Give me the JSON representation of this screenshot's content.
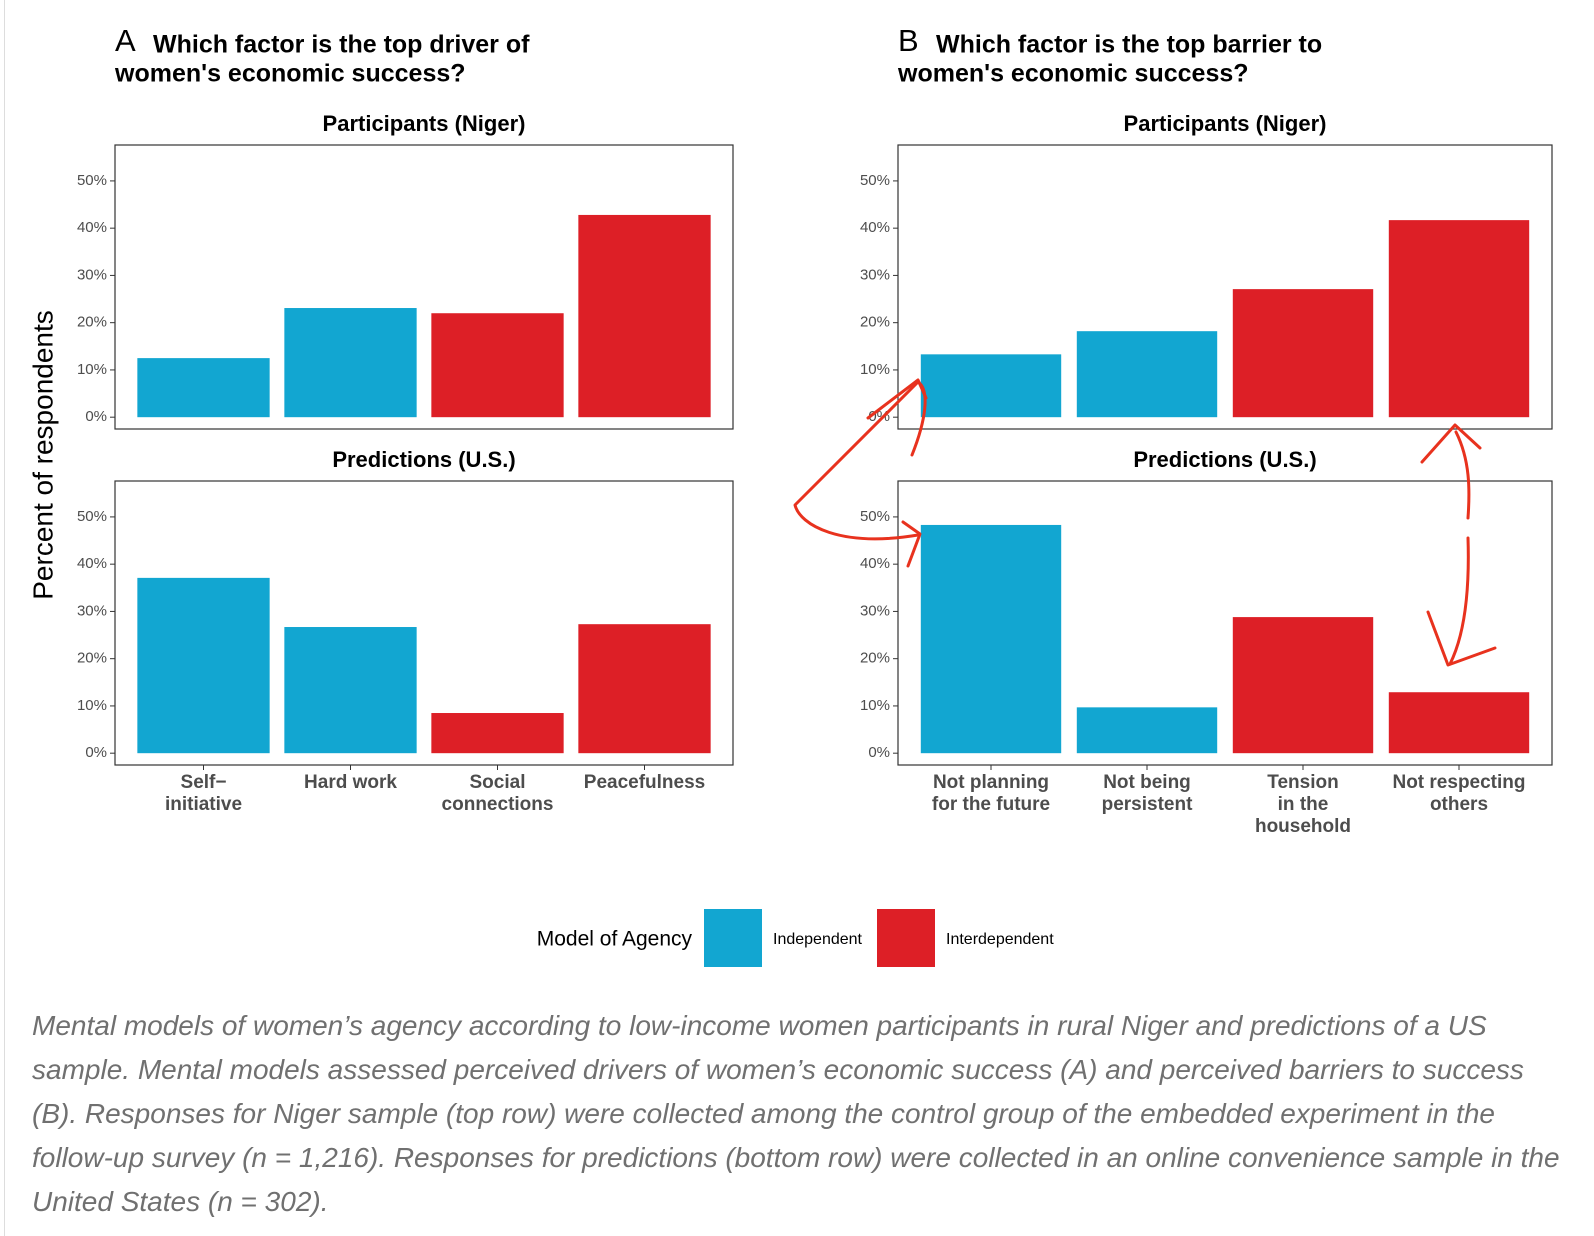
{
  "chart_data": [
    {
      "type": "bar",
      "label": "A",
      "title": [
        "Which factor is the top driver of",
        "women's economic success?"
      ],
      "categories": [
        [
          "Self−",
          "initiative"
        ],
        [
          "Hard work"
        ],
        [
          "Social",
          "connections"
        ],
        [
          "Peacefulness"
        ]
      ],
      "colors": [
        "#12a6d1",
        "#12a6d1",
        "#dd1f26",
        "#dd1f26"
      ],
      "ylim": [
        -2.5,
        57.6
      ],
      "yticks": [
        {
          "value": 0,
          "label": "0%"
        },
        {
          "value": 10,
          "label": "10%"
        },
        {
          "value": 20,
          "label": "20%"
        },
        {
          "value": 30,
          "label": "30%"
        },
        {
          "value": 40,
          "label": "40%"
        },
        {
          "value": 50,
          "label": "50%"
        }
      ],
      "facets": [
        {
          "title": "Participants (Niger)",
          "values": [
            12.5,
            23.1,
            22.0,
            42.8
          ]
        },
        {
          "title": "Predictions (U.S.)",
          "values": [
            37.1,
            26.7,
            8.5,
            27.3
          ]
        }
      ]
    },
    {
      "type": "bar",
      "label": "B",
      "title": [
        "Which factor is the top barrier to",
        "women's economic success?"
      ],
      "categories": [
        [
          "Not planning",
          "for the future"
        ],
        [
          "Not being",
          "persistent"
        ],
        [
          "Tension",
          "in the",
          "household"
        ],
        [
          "Not respecting",
          "others"
        ]
      ],
      "colors": [
        "#12a6d1",
        "#12a6d1",
        "#dd1f26",
        "#dd1f26"
      ],
      "ylim": [
        -2.5,
        57.6
      ],
      "yticks": [
        {
          "value": 0,
          "label": "0%"
        },
        {
          "value": 10,
          "label": "10%"
        },
        {
          "value": 20,
          "label": "20%"
        },
        {
          "value": 30,
          "label": "30%"
        },
        {
          "value": 40,
          "label": "40%"
        },
        {
          "value": 50,
          "label": "50%"
        }
      ],
      "facets": [
        {
          "title": "Participants (Niger)",
          "values": [
            13.3,
            18.2,
            27.1,
            41.7
          ]
        },
        {
          "title": "Predictions (U.S.)",
          "values": [
            48.3,
            9.7,
            28.8,
            12.9
          ]
        }
      ]
    }
  ],
  "y_label": "Percent of respondents",
  "legend": {
    "title": "Model of Agency",
    "items": [
      {
        "name": "Independent",
        "color": "#12a6d1"
      },
      {
        "name": "Interdependent",
        "color": "#dd1f26"
      }
    ]
  },
  "caption": "Mental models of women’s agency according to low-income women participants in rural Niger and predictions of a US sample. Mental models assessed perceived drivers of women’s economic success (A) and perceived barriers to success (B). Responses for Niger sample (top row) were collected among the control group of the embedded experiment in the follow-up survey (n = 1,216). Responses for predictions (bottom row) were collected in an online convenience sample in the United States (n = 302)."
}
